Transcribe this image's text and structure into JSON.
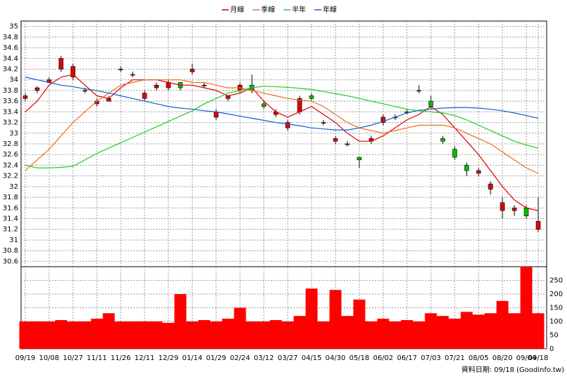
{
  "chart_data": {
    "type": "candlestick",
    "legend": "top",
    "grid": true,
    "up_color": "#e00000",
    "down_color": "#00c000",
    "footer": "資料日期: 09/18 (Goodinfo.tw)",
    "categories": [
      "09/19",
      null,
      "10/08",
      null,
      "10/27",
      null,
      "11/11",
      null,
      "11/26",
      null,
      "12/11",
      null,
      "12/29",
      null,
      "01/14",
      null,
      "01/29",
      null,
      "02/24",
      null,
      "03/12",
      null,
      "03/27",
      null,
      "04/15",
      null,
      "04/30",
      null,
      "05/18",
      null,
      "06/02",
      null,
      "06/17",
      null,
      "07/03",
      null,
      "07/21",
      null,
      "08/05",
      null,
      "08/20",
      null,
      "09/04",
      "09/18"
    ],
    "ylim": [
      30.5,
      35.1
    ],
    "yticks": [
      30.6,
      30.8,
      31,
      31.2,
      31.4,
      31.6,
      31.8,
      32,
      32.2,
      32.4,
      32.6,
      32.8,
      33,
      33.2,
      33.4,
      33.6,
      33.8,
      34,
      34.2,
      34.4,
      34.6,
      34.8,
      35
    ],
    "open": [
      33.65,
      33.8,
      33.95,
      34.2,
      34.05,
      33.8,
      33.55,
      33.6,
      34.2,
      34.1,
      33.65,
      33.85,
      33.85,
      33.95,
      34.15,
      33.9,
      33.3,
      33.65,
      33.8,
      33.9,
      33.55,
      33.35,
      33.1,
      33.4,
      33.7,
      33.2,
      32.85,
      32.8,
      32.55,
      32.85,
      33.2,
      33.3,
      33.4,
      33.8,
      33.6,
      32.9,
      32.7,
      32.4,
      32.25,
      31.95,
      31.55,
      31.55,
      31.6,
      31.2
    ],
    "high": [
      33.75,
      33.88,
      34.05,
      34.45,
      34.3,
      33.85,
      33.65,
      33.7,
      34.25,
      34.15,
      33.8,
      33.95,
      34.0,
      33.95,
      34.3,
      33.95,
      33.45,
      33.7,
      33.95,
      34.1,
      33.6,
      33.45,
      33.25,
      33.7,
      33.75,
      33.25,
      32.95,
      32.85,
      32.55,
      32.95,
      33.35,
      33.35,
      33.45,
      33.9,
      33.7,
      32.95,
      32.75,
      32.45,
      32.35,
      32.1,
      31.8,
      31.65,
      31.65,
      31.8
    ],
    "low": [
      33.6,
      33.75,
      33.95,
      34.15,
      34.0,
      33.75,
      33.5,
      33.6,
      34.15,
      34.05,
      33.6,
      33.8,
      33.8,
      33.8,
      34.1,
      33.85,
      33.25,
      33.6,
      33.75,
      33.75,
      33.45,
      33.3,
      33.05,
      33.35,
      33.6,
      33.15,
      32.8,
      32.75,
      32.35,
      32.8,
      33.15,
      33.25,
      33.35,
      33.75,
      33.45,
      32.8,
      32.5,
      32.2,
      32.2,
      31.85,
      31.4,
      31.45,
      31.4,
      31.15
    ],
    "close": [
      33.7,
      33.85,
      34.0,
      34.4,
      34.25,
      33.8,
      33.6,
      33.65,
      34.2,
      34.1,
      33.75,
      33.9,
      33.95,
      33.85,
      34.2,
      33.9,
      33.4,
      33.7,
      33.9,
      33.8,
      33.5,
      33.4,
      33.2,
      33.65,
      33.65,
      33.2,
      32.9,
      32.8,
      32.5,
      32.9,
      33.3,
      33.3,
      33.4,
      33.8,
      33.5,
      32.85,
      32.55,
      32.3,
      32.3,
      32.05,
      31.7,
      31.6,
      31.45,
      31.35
    ],
    "series": [
      {
        "name": "月線",
        "color": "#e00000",
        "values": [
          33.4,
          33.6,
          33.9,
          34.05,
          34.1,
          33.9,
          33.7,
          33.65,
          33.85,
          34.0,
          34.0,
          34.0,
          33.95,
          33.9,
          33.9,
          33.85,
          33.8,
          33.7,
          33.75,
          33.85,
          33.6,
          33.4,
          33.3,
          33.4,
          33.5,
          33.35,
          33.2,
          33.0,
          32.85,
          32.85,
          32.95,
          33.1,
          33.25,
          33.35,
          33.5,
          33.35,
          33.1,
          32.85,
          32.6,
          32.3,
          32.0,
          31.75,
          31.6,
          31.55
        ]
      },
      {
        "name": "季線",
        "color": "#e87020",
        "values": [
          32.3,
          32.5,
          32.7,
          32.95,
          33.2,
          33.4,
          33.6,
          33.75,
          33.9,
          33.95,
          34.0,
          34.0,
          34.0,
          34.0,
          33.95,
          33.95,
          33.9,
          33.85,
          33.85,
          33.8,
          33.75,
          33.7,
          33.65,
          33.62,
          33.6,
          33.5,
          33.35,
          33.2,
          33.1,
          33.05,
          33.0,
          33.05,
          33.1,
          33.15,
          33.15,
          33.15,
          33.1,
          33.0,
          32.9,
          32.8,
          32.65,
          32.5,
          32.35,
          32.25
        ]
      },
      {
        "name": "半年",
        "color": "#22cc22",
        "values": [
          32.4,
          32.35,
          32.35,
          32.36,
          32.38,
          32.5,
          32.62,
          32.72,
          32.82,
          32.92,
          33.02,
          33.12,
          33.22,
          33.32,
          33.42,
          33.55,
          33.65,
          33.75,
          33.8,
          33.85,
          33.88,
          33.87,
          33.86,
          33.84,
          33.82,
          33.78,
          33.74,
          33.7,
          33.65,
          33.6,
          33.55,
          33.5,
          33.45,
          33.42,
          33.4,
          33.38,
          33.33,
          33.25,
          33.15,
          33.05,
          32.95,
          32.85,
          32.78,
          32.72
        ]
      },
      {
        "name": "年線",
        "color": "#1060d0",
        "values": [
          34.05,
          34.0,
          33.95,
          33.9,
          33.87,
          33.83,
          33.8,
          33.75,
          33.7,
          33.65,
          33.6,
          33.55,
          33.5,
          33.47,
          33.45,
          33.42,
          33.4,
          33.36,
          33.32,
          33.28,
          33.24,
          33.2,
          33.17,
          33.14,
          33.1,
          33.08,
          33.06,
          33.06,
          33.1,
          33.15,
          33.22,
          33.3,
          33.38,
          33.43,
          33.45,
          33.47,
          33.48,
          33.48,
          33.47,
          33.45,
          33.42,
          33.38,
          33.33,
          33.28
        ]
      }
    ],
    "volume": {
      "color": "#ff0000",
      "axis": "y2",
      "values": [
        100,
        100,
        100,
        105,
        100,
        100,
        110,
        130,
        100,
        100,
        100,
        100,
        95,
        200,
        100,
        105,
        100,
        110,
        150,
        100,
        100,
        105,
        100,
        120,
        220,
        100,
        215,
        120,
        180,
        100,
        110,
        100,
        105,
        100,
        130,
        120,
        110,
        135,
        125,
        130,
        175,
        130,
        300,
        130
      ]
    },
    "y2lim": [
      0,
      300
    ],
    "y2ticks": [
      0,
      50,
      100,
      150,
      200,
      250
    ]
  }
}
